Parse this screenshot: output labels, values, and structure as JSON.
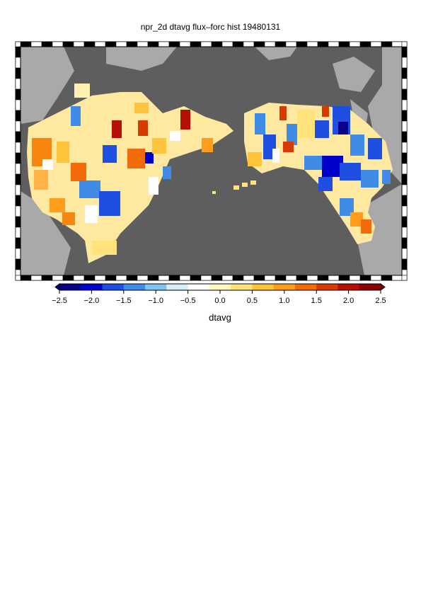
{
  "title": "npr_2d dtavg flux–forc hist 19480131",
  "colorbar": {
    "variable": "dtavg",
    "tick_labels": [
      "−2.5",
      "−2.0",
      "−1.5",
      "−1.0",
      "−0.5",
      "0.0",
      "0.5",
      "1.0",
      "1.5",
      "2.0",
      "2.5"
    ],
    "range": [
      -2.5,
      2.5
    ],
    "extend": "both",
    "colors": [
      "#08008a",
      "#0000cd",
      "#1f4fe0",
      "#3f8be6",
      "#7fc4ef",
      "#d6eef7",
      "#ffffff",
      "#fff7c0",
      "#ffe27a",
      "#ffc33c",
      "#ff9c1a",
      "#f36a0a",
      "#d83a04",
      "#b41006",
      "#8a0000"
    ]
  },
  "map": {
    "ocean_color": "#5e5e5e",
    "land_color": "#a9a9a9",
    "frame_style": "alternating black/white ticked border"
  }
}
